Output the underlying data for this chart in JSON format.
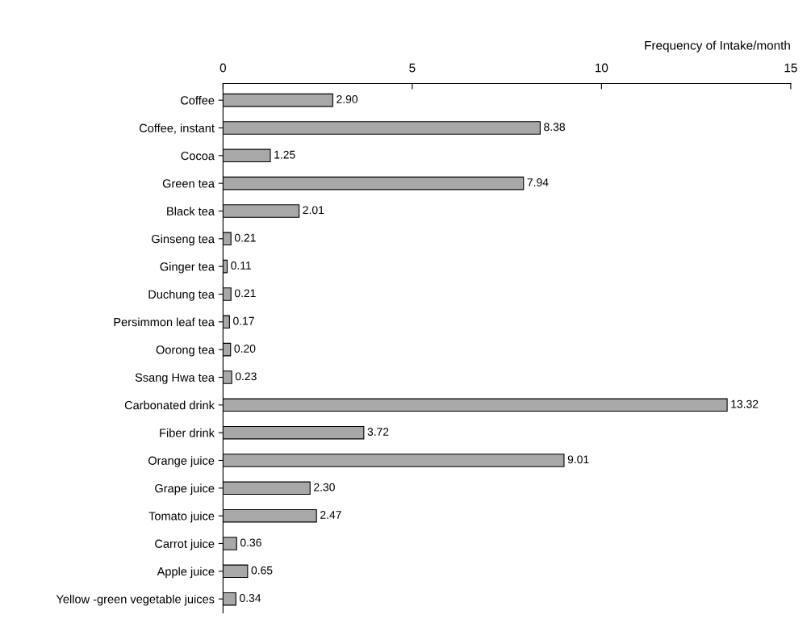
{
  "chart_data": {
    "type": "bar",
    "orientation": "horizontal",
    "xlabel": "Frequency of Intake/month",
    "categories": [
      "Coffee",
      "Coffee, instant",
      "Cocoa",
      "Green tea",
      "Black tea",
      "Ginseng tea",
      "Ginger tea",
      "Duchung tea",
      "Persimmon leaf tea",
      "Oorong tea",
      "Ssang Hwa tea",
      "Carbonated drink",
      "Fiber drink",
      "Orange juice",
      "Grape juice",
      "Tomato juice",
      "Carrot juice",
      "Apple juice",
      "Yellow -green vegetable juices"
    ],
    "values": [
      2.9,
      8.38,
      1.25,
      7.94,
      2.01,
      0.21,
      0.11,
      0.21,
      0.17,
      0.2,
      0.23,
      13.32,
      3.72,
      9.01,
      2.3,
      2.47,
      0.36,
      0.65,
      0.34
    ],
    "value_labels": [
      "2.90",
      "8.38",
      "1.25",
      "7.94",
      "2.01",
      "0.21",
      "0.11",
      "0.21",
      "0.17",
      "0.20",
      "0.23",
      "13.32",
      "3.72",
      "9.01",
      "2.30",
      "2.47",
      "0.36",
      "0.65",
      "0.34"
    ],
    "color": "#a8a8a8",
    "xlim": [
      0,
      15
    ],
    "xticks": [
      0,
      5,
      10,
      15
    ],
    "grid": false
  }
}
